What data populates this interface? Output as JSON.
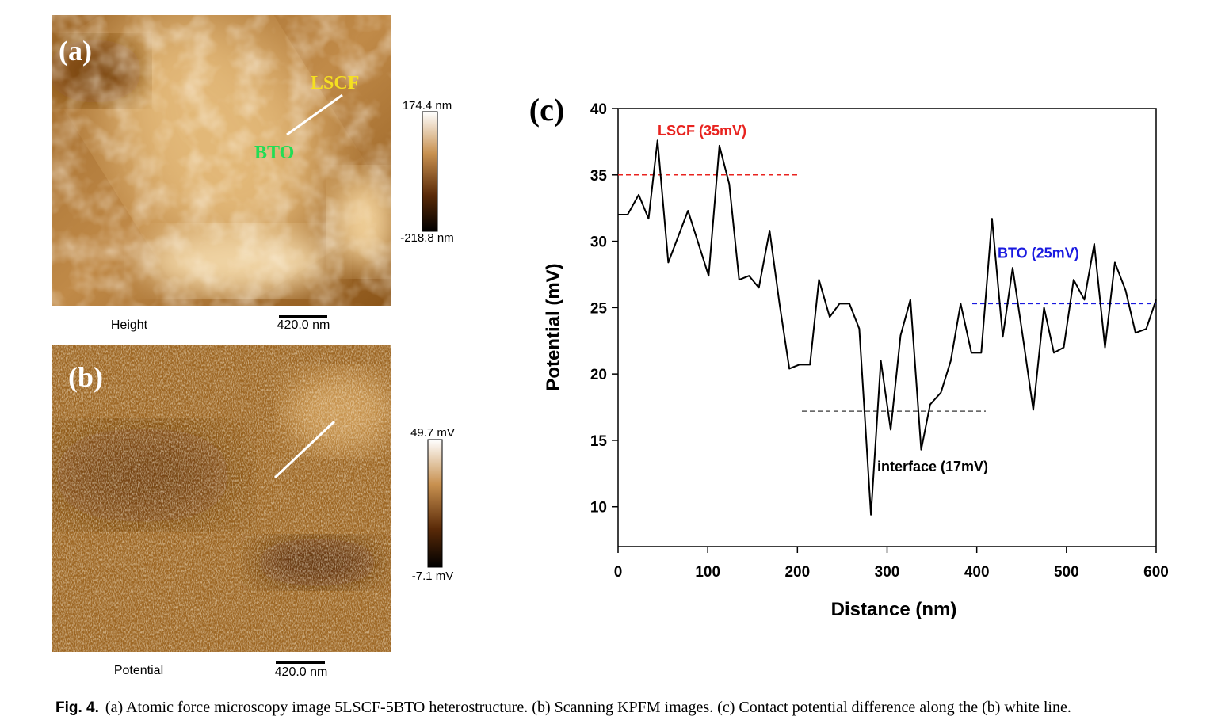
{
  "panels": [
    {
      "label": "(a)",
      "markers": [
        "LSCF",
        "BTO"
      ],
      "colorbar_max": "174.4 nm",
      "colorbar_min": "-218.8 nm",
      "channel": "Height",
      "scale_bar": "420.0 nm"
    },
    {
      "label": "(b)",
      "colorbar_max": "49.7 mV",
      "colorbar_min": "-7.1 mV",
      "channel": "Potential",
      "scale_bar": "420.0 nm"
    }
  ],
  "chart_data": {
    "type": "line",
    "label": "(c)",
    "xlabel": "Distance (nm)",
    "ylabel": "Potential (mV)",
    "x": [
      0,
      10.6,
      23,
      34,
      44,
      56,
      78,
      101,
      113,
      124,
      135,
      146,
      157,
      169,
      180,
      191,
      202,
      214,
      224,
      236,
      247,
      258,
      269,
      282,
      293,
      304,
      315,
      326,
      338,
      348,
      360,
      371,
      382,
      394,
      405,
      417,
      429,
      440,
      452,
      463,
      475,
      486,
      497,
      508,
      520,
      531,
      543,
      554,
      566,
      577,
      589,
      600
    ],
    "series": [
      {
        "color": "#000000",
        "values": [
          32.0,
          32.0,
          33.5,
          31.7,
          37.6,
          28.4,
          32.3,
          27.4,
          37.2,
          34.3,
          27.1,
          27.4,
          26.5,
          30.8,
          25.3,
          20.4,
          20.7,
          20.7,
          27.1,
          24.3,
          25.3,
          25.3,
          23.4,
          9.4,
          21.0,
          15.8,
          22.9,
          25.6,
          14.3,
          17.7,
          18.6,
          21.0,
          25.3,
          21.6,
          21.6,
          31.7,
          22.8,
          28.0,
          22.5,
          17.3,
          25.0,
          21.6,
          22.0,
          27.1,
          25.6,
          29.8,
          22.0,
          28.4,
          26.3,
          23.1,
          23.4,
          25.6
        ]
      }
    ],
    "references": [
      {
        "label": "LSCF (35mV)",
        "value": 35,
        "x_range": [
          0,
          200
        ],
        "color": "#e8231f"
      },
      {
        "label": "interface (17mV)",
        "value": 17.2,
        "x_range": [
          205,
          410
        ],
        "color": "#555555"
      },
      {
        "label": "BTO (25mV)",
        "value": 25.3,
        "x_range": [
          395,
          600
        ],
        "color": "#1a1ae0"
      }
    ],
    "xlim": [
      0,
      600
    ],
    "ylim": [
      7,
      40
    ],
    "xticks": [
      0,
      100,
      200,
      300,
      400,
      500,
      600
    ],
    "yticks": [
      10,
      15,
      20,
      25,
      30,
      35,
      40
    ]
  },
  "caption": {
    "label": "Fig. 4.",
    "text": "(a) Atomic force microscopy image 5LSCF-5BTO heterostructure. (b) Scanning KPFM images. (c) Contact potential difference along the (b) white line."
  }
}
